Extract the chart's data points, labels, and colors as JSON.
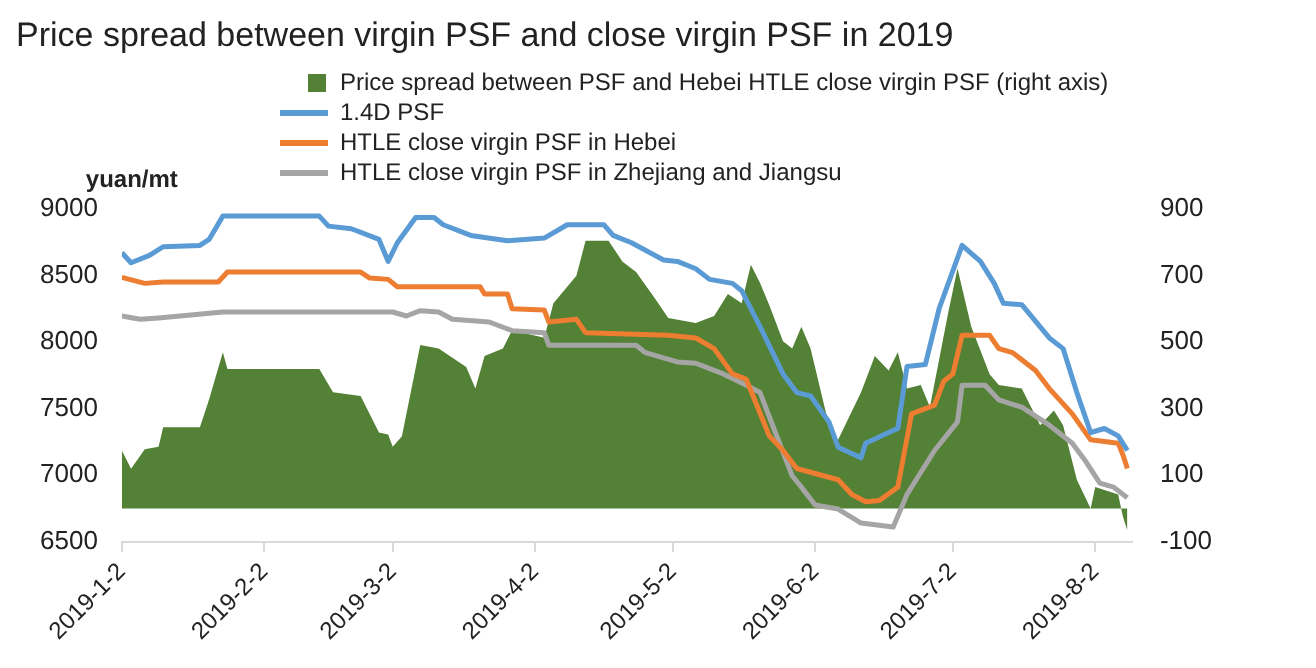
{
  "chart_data": {
    "type": "line",
    "title": "Price spread between virgin PSF and close virgin PSF in 2019",
    "ylabel": "yuan/mt",
    "series": [
      {
        "name": "Price spread between PSF and Hebei HTLE close virgin PSF (right axis)",
        "type": "area",
        "axis": "y2",
        "color": "#538135",
        "x": [
          "2019-01-02",
          "2019-01-04",
          "2019-01-07",
          "2019-01-10",
          "2019-01-11",
          "2019-01-19",
          "2019-01-21",
          "2019-01-24",
          "2019-01-25",
          "2019-02-14",
          "2019-02-17",
          "2019-02-23",
          "2019-02-27",
          "2019-03-01",
          "2019-03-02",
          "2019-03-04",
          "2019-03-08",
          "2019-03-12",
          "2019-03-18",
          "2019-03-20",
          "2019-03-22",
          "2019-03-26",
          "2019-03-28",
          "2019-04-04",
          "2019-04-06",
          "2019-04-11",
          "2019-04-13",
          "2019-04-18",
          "2019-04-21",
          "2019-04-24",
          "2019-04-28",
          "2019-05-01",
          "2019-05-07",
          "2019-05-11",
          "2019-05-14",
          "2019-05-17",
          "2019-05-19",
          "2019-05-21",
          "2019-05-23",
          "2019-05-26",
          "2019-05-28",
          "2019-05-30",
          "2019-06-01",
          "2019-06-05",
          "2019-06-07",
          "2019-06-12",
          "2019-06-15",
          "2019-06-18",
          "2019-06-20",
          "2019-06-22",
          "2019-06-25",
          "2019-06-27",
          "2019-07-01",
          "2019-07-03",
          "2019-07-06",
          "2019-07-10",
          "2019-07-12",
          "2019-07-17",
          "2019-07-21",
          "2019-07-24",
          "2019-07-26",
          "2019-07-29",
          "2019-08-01",
          "2019-08-02",
          "2019-08-07",
          "2019-08-08",
          "2019-08-09"
        ],
        "values": [
          174,
          119,
          178,
          185,
          244,
          244,
          327,
          469,
          419,
          419,
          349,
          338,
          228,
          222,
          185,
          217,
          491,
          480,
          425,
          360,
          458,
          480,
          535,
          513,
          616,
          699,
          804,
          804,
          742,
          710,
          633,
          572,
          557,
          578,
          644,
          616,
          732,
          677,
          611,
          502,
          480,
          546,
          480,
          250,
          206,
          349,
          458,
          414,
          469,
          360,
          371,
          305,
          589,
          721,
          546,
          403,
          371,
          360,
          250,
          294,
          250,
          86,
          0,
          64,
          42,
          -23,
          -67
        ]
      },
      {
        "name": "1.4D PSF",
        "type": "line",
        "color": "#5b9bd5",
        "x": [
          "2019-01-02",
          "2019-01-04",
          "2019-01-08",
          "2019-01-11",
          "2019-01-19",
          "2019-01-21",
          "2019-01-24",
          "2019-02-14",
          "2019-02-16",
          "2019-02-21",
          "2019-02-27",
          "2019-03-01",
          "2019-03-03",
          "2019-03-07",
          "2019-03-11",
          "2019-03-13",
          "2019-03-19",
          "2019-03-27",
          "2019-04-04",
          "2019-04-09",
          "2019-04-17",
          "2019-04-19",
          "2019-04-23",
          "2019-04-30",
          "2019-05-03",
          "2019-05-07",
          "2019-05-10",
          "2019-05-15",
          "2019-05-17",
          "2019-05-21",
          "2019-05-26",
          "2019-05-29",
          "2019-06-01",
          "2019-06-05",
          "2019-06-07",
          "2019-06-12",
          "2019-06-13",
          "2019-06-18",
          "2019-06-20",
          "2019-06-22",
          "2019-06-26",
          "2019-06-29",
          "2019-07-04",
          "2019-07-08",
          "2019-07-11",
          "2019-07-13",
          "2019-07-17",
          "2019-07-23",
          "2019-07-26",
          "2019-07-29",
          "2019-08-01",
          "2019-08-04",
          "2019-08-07",
          "2019-08-09"
        ],
        "values": [
          8670,
          8595,
          8650,
          8715,
          8725,
          8770,
          8945,
          8945,
          8870,
          8850,
          8770,
          8605,
          8745,
          8935,
          8935,
          8880,
          8800,
          8760,
          8780,
          8880,
          8880,
          8800,
          8745,
          8615,
          8605,
          8550,
          8470,
          8440,
          8385,
          8115,
          7760,
          7620,
          7595,
          7400,
          7210,
          7130,
          7240,
          7320,
          7350,
          7815,
          7830,
          8250,
          8725,
          8605,
          8440,
          8290,
          8280,
          8030,
          7950,
          7620,
          7320,
          7350,
          7295,
          7185
        ]
      },
      {
        "name": "HTLE close virgin PSF in Hebei",
        "type": "line",
        "color": "#ed7d31",
        "x": [
          "2019-01-02",
          "2019-01-07",
          "2019-01-11",
          "2019-01-23",
          "2019-01-25",
          "2019-02-23",
          "2019-02-25",
          "2019-03-01",
          "2019-03-03",
          "2019-03-21",
          "2019-03-22",
          "2019-03-27",
          "2019-03-28",
          "2019-04-04",
          "2019-04-05",
          "2019-04-11",
          "2019-04-13",
          "2019-05-01",
          "2019-05-07",
          "2019-05-11",
          "2019-05-15",
          "2019-05-18",
          "2019-05-23",
          "2019-05-26",
          "2019-05-29",
          "2019-06-07",
          "2019-06-10",
          "2019-06-13",
          "2019-06-16",
          "2019-06-20",
          "2019-06-23",
          "2019-06-28",
          "2019-06-30",
          "2019-07-02",
          "2019-07-04",
          "2019-07-10",
          "2019-07-12",
          "2019-07-15",
          "2019-07-20",
          "2019-07-23",
          "2019-07-28",
          "2019-08-01",
          "2019-08-07",
          "2019-08-08",
          "2019-08-09"
        ],
        "values": [
          8485,
          8440,
          8450,
          8450,
          8525,
          8525,
          8480,
          8470,
          8415,
          8415,
          8360,
          8360,
          8250,
          8240,
          8150,
          8170,
          8070,
          8050,
          8030,
          7950,
          7760,
          7720,
          7295,
          7185,
          7050,
          6965,
          6855,
          6800,
          6810,
          6910,
          7460,
          7525,
          7705,
          7760,
          8050,
          8050,
          7950,
          7920,
          7785,
          7650,
          7460,
          7265,
          7240,
          7155,
          7050
        ]
      },
      {
        "name": "HTLE close virgin PSF in Zhejiang and Jiangsu",
        "type": "line",
        "color": "#a5a5a5",
        "x": [
          "2019-01-02",
          "2019-01-06",
          "2019-01-10",
          "2019-01-24",
          "2019-03-02",
          "2019-03-05",
          "2019-03-08",
          "2019-03-12",
          "2019-03-15",
          "2019-03-23",
          "2019-03-28",
          "2019-04-04",
          "2019-04-05",
          "2019-04-24",
          "2019-04-26",
          "2019-05-03",
          "2019-05-07",
          "2019-05-13",
          "2019-05-18",
          "2019-05-21",
          "2019-05-24",
          "2019-05-28",
          "2019-05-30",
          "2019-06-02",
          "2019-06-07",
          "2019-06-12",
          "2019-06-19",
          "2019-06-22",
          "2019-06-25",
          "2019-06-28",
          "2019-07-03",
          "2019-07-04",
          "2019-07-09",
          "2019-07-12",
          "2019-07-17",
          "2019-07-23",
          "2019-07-28",
          "2019-07-31",
          "2019-08-03",
          "2019-08-06",
          "2019-08-09"
        ],
        "values": [
          8195,
          8170,
          8180,
          8225,
          8225,
          8195,
          8235,
          8225,
          8170,
          8150,
          8085,
          8070,
          7975,
          7975,
          7920,
          7850,
          7840,
          7760,
          7675,
          7620,
          7350,
          6995,
          6910,
          6775,
          6745,
          6640,
          6610,
          6855,
          7020,
          7185,
          7400,
          7675,
          7675,
          7565,
          7510,
          7375,
          7240,
          7100,
          6940,
          6910,
          6830
        ]
      }
    ],
    "xlim": [
      "2019-01-02",
      "2019-08-10"
    ],
    "xticks": [
      {
        "value": "2019-01-02",
        "label": "2019-1-2"
      },
      {
        "value": "2019-02-02",
        "label": "2019-2-2"
      },
      {
        "value": "2019-03-02",
        "label": "2019-3-2"
      },
      {
        "value": "2019-04-02",
        "label": "2019-4-2"
      },
      {
        "value": "2019-05-02",
        "label": "2019-5-2"
      },
      {
        "value": "2019-06-02",
        "label": "2019-6-2"
      },
      {
        "value": "2019-07-02",
        "label": "2019-7-2"
      },
      {
        "value": "2019-08-02",
        "label": "2019-8-2"
      }
    ],
    "ylim": [
      6500,
      9000
    ],
    "yticks": [
      6500,
      7000,
      7500,
      8000,
      8500,
      9000
    ],
    "y2lim": [
      -100,
      900
    ],
    "y2ticks": [
      -100,
      100,
      300,
      500,
      700,
      900
    ],
    "legend": "top",
    "grid": false,
    "marker": "none",
    "line_style": "solid"
  }
}
